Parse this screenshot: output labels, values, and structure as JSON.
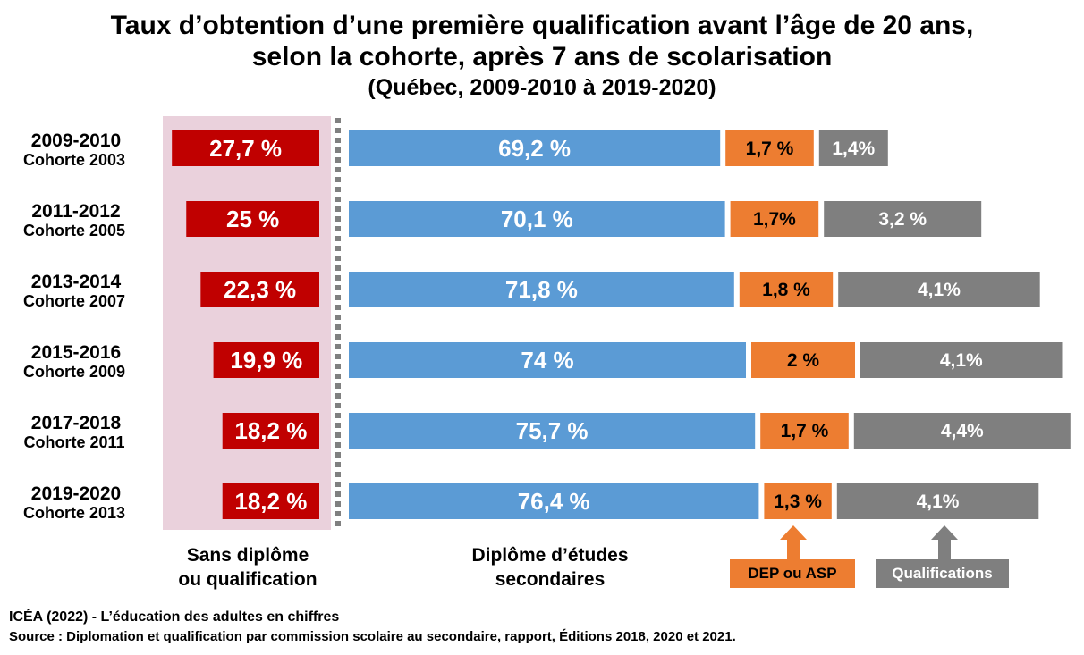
{
  "title": {
    "line1": "Taux d’obtention d’une première qualification avant l’âge de 20 ans,",
    "line2": "selon la cohorte, après 7 ans de scolarisation",
    "line3": "(Québec, 2009-2010 à 2019-2020)"
  },
  "colors": {
    "sans": "#c00000",
    "des": "#5b9bd5",
    "dep": "#ed7d31",
    "qual": "#7f7f7f",
    "panel": "#ead1dc",
    "divider": "#808080"
  },
  "chart_data": {
    "type": "bar",
    "orientation": "horizontal",
    "categories": [
      {
        "year": "2009-2010",
        "cohort": "Cohorte 2003"
      },
      {
        "year": "2011-2012",
        "cohort": "Cohorte 2005"
      },
      {
        "year": "2013-2014",
        "cohort": "Cohorte 2007"
      },
      {
        "year": "2015-2016",
        "cohort": "Cohorte 2009"
      },
      {
        "year": "2017-2018",
        "cohort": "Cohorte 2011"
      },
      {
        "year": "2019-2020",
        "cohort": "Cohorte 2013"
      }
    ],
    "series": [
      {
        "key": "sans",
        "name": "Sans diplôme ou qualification",
        "values": [
          27.7,
          25,
          22.3,
          19.9,
          18.2,
          18.2
        ],
        "labels": [
          "27,7 %",
          "25 %",
          "22,3 %",
          "19,9 %",
          "18,2 %",
          "18,2 %"
        ]
      },
      {
        "key": "des",
        "name": "Diplôme d’études secondaires",
        "values": [
          69.2,
          70.1,
          71.8,
          74,
          75.7,
          76.4
        ],
        "labels": [
          "69,2 %",
          "70,1 %",
          "71,8 %",
          "74 %",
          "75,7 %",
          "76,4 %"
        ]
      },
      {
        "key": "dep",
        "name": "DEP ou ASP",
        "values": [
          1.7,
          1.7,
          1.8,
          2,
          1.7,
          1.3
        ],
        "labels": [
          "1,7 %",
          "1,7%",
          "1,8 %",
          "2 %",
          "1,7 %",
          "1,3 %"
        ]
      },
      {
        "key": "qual",
        "name": "Qualifications",
        "values": [
          1.4,
          3.2,
          4.1,
          4.1,
          4.4,
          4.1
        ],
        "labels": [
          "1,4%",
          "3,2 %",
          "4,1%",
          "4,1%",
          "4,4%",
          "4,1%"
        ]
      }
    ]
  },
  "captions": {
    "sans_line1": "Sans diplôme",
    "sans_line2": "ou qualification",
    "des_line1": "Diplôme d’études",
    "des_line2": "secondaires",
    "dep_tag": "DEP ou ASP",
    "qual_tag": "Qualifications"
  },
  "source": {
    "line1": "ICÉA (2022) - L’éducation des adultes en chiffres",
    "line2": "Source : Diplomation et qualification par commission scolaire au secondaire, rapport, Éditions 2018, 2020 et 2021."
  }
}
